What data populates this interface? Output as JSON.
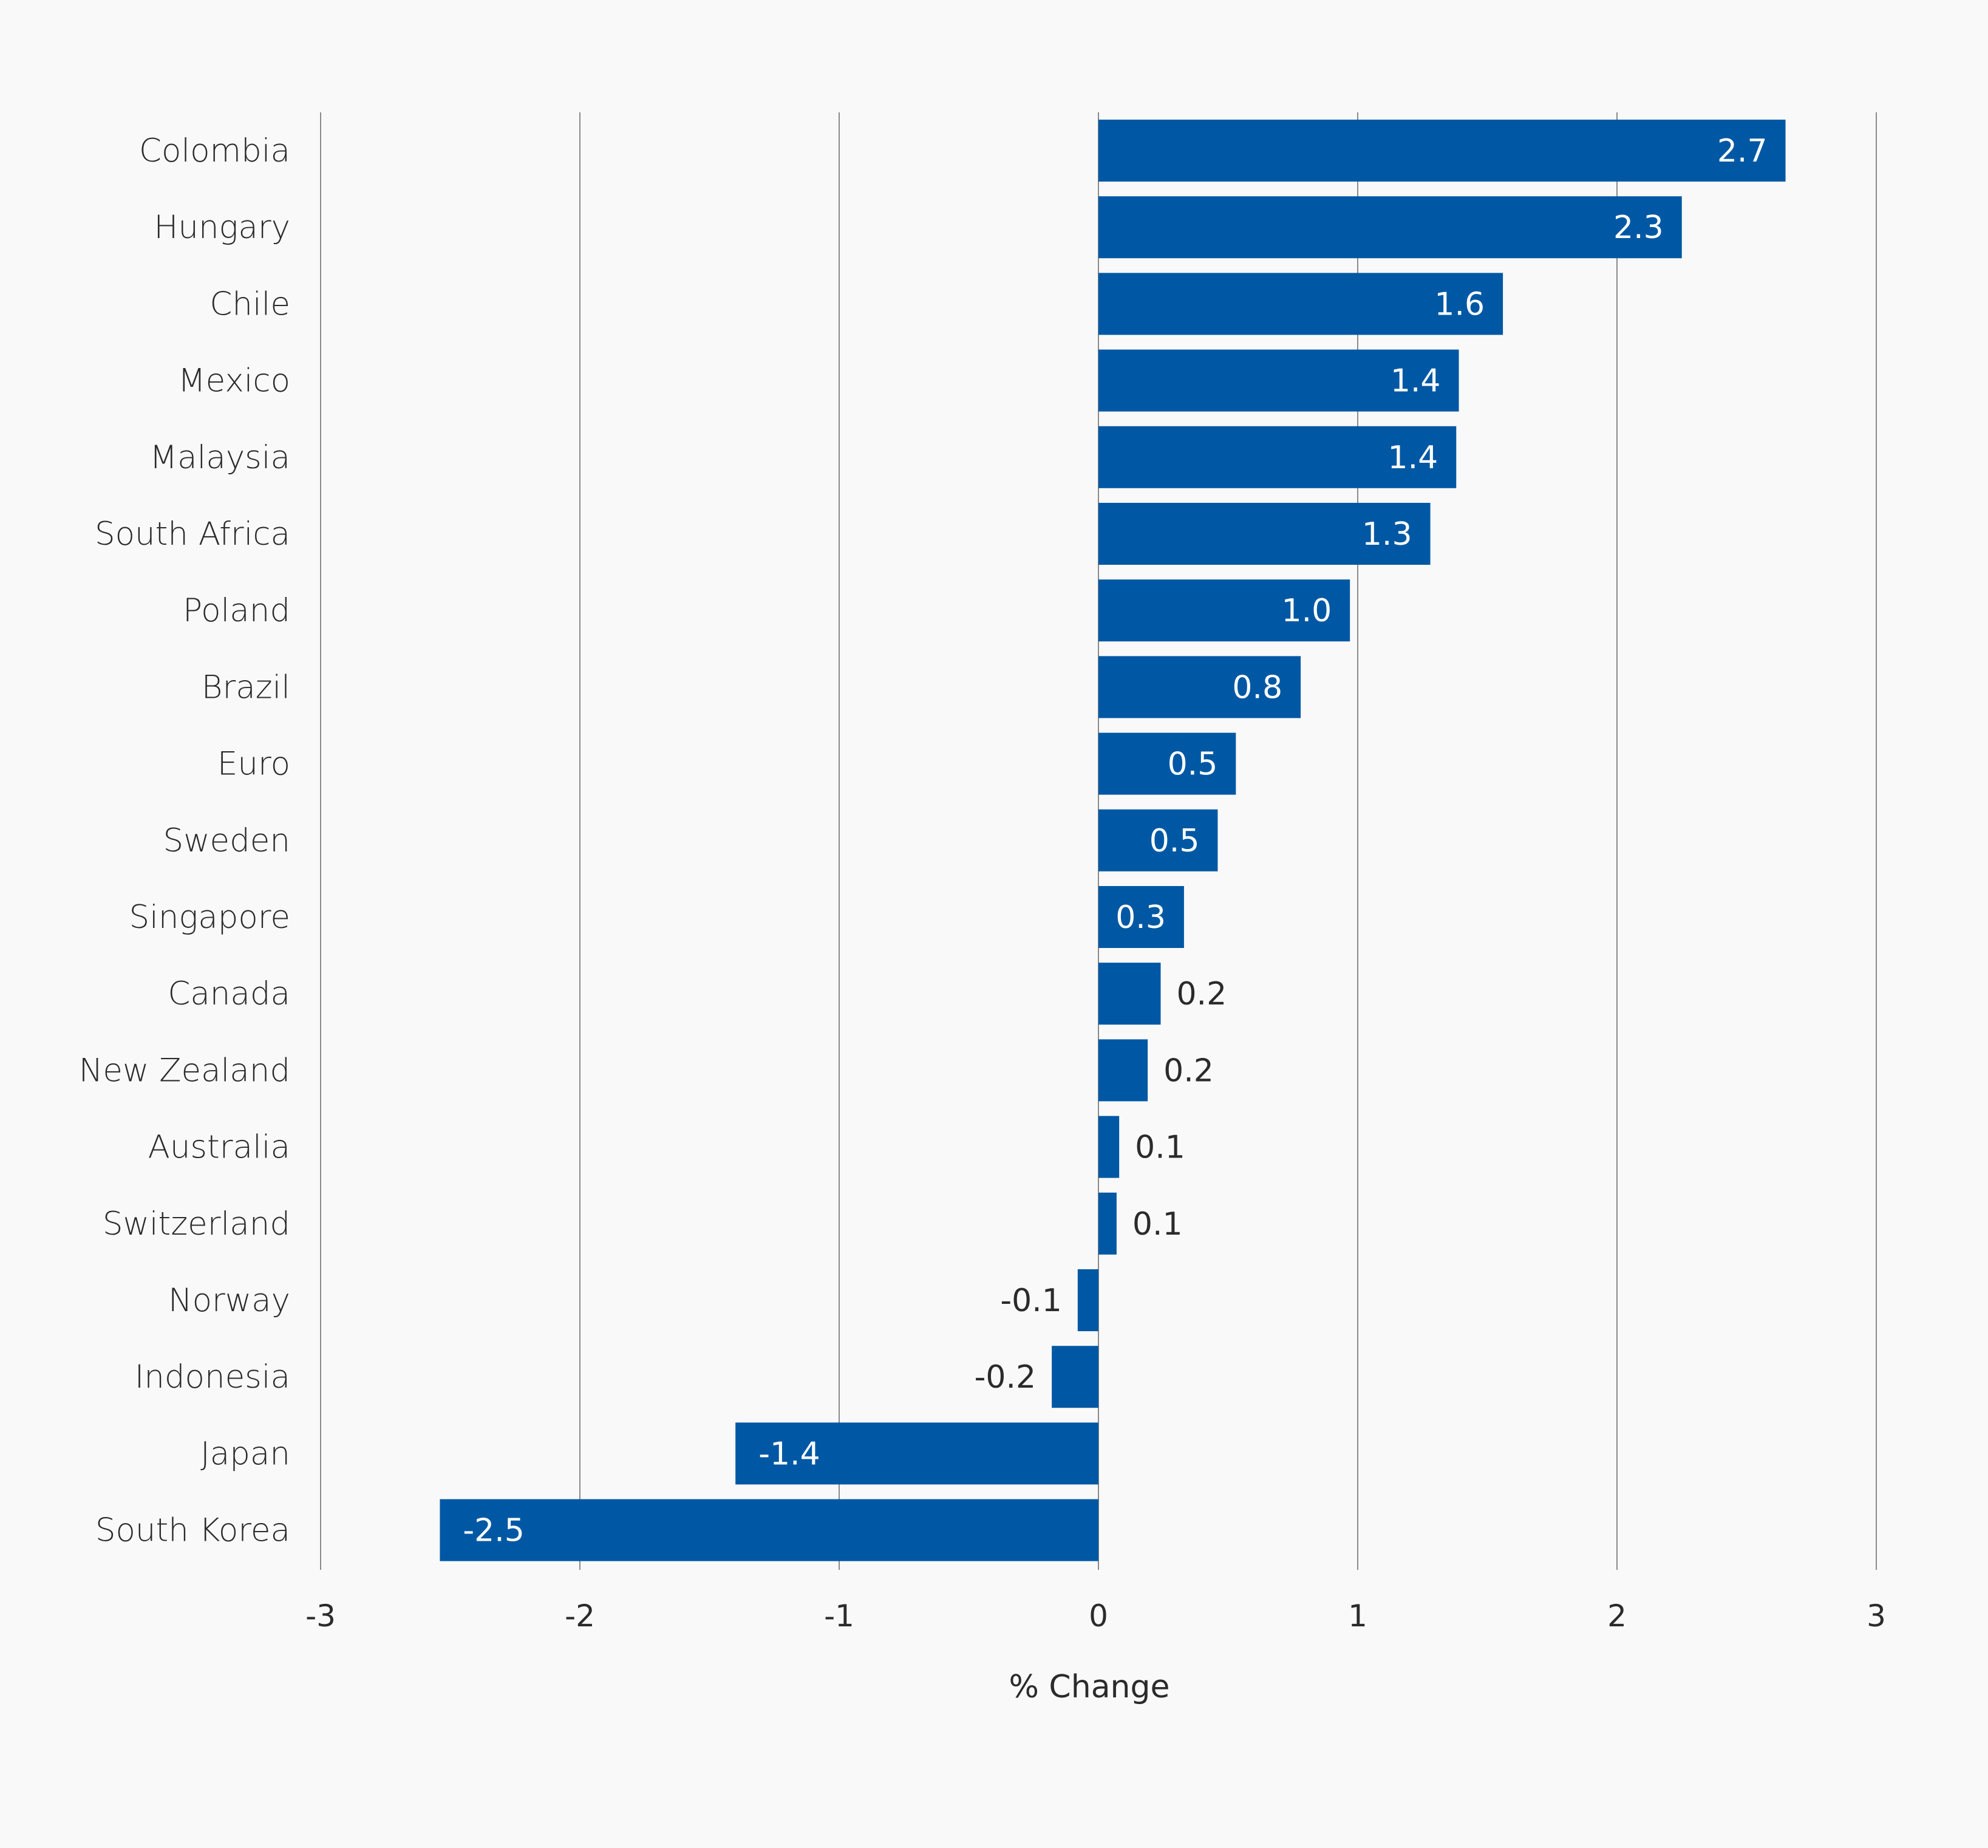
{
  "chart_data": {
    "type": "bar",
    "orientation": "horizontal",
    "categories": [
      "Colombia",
      "Hungary",
      "Chile",
      "Mexico",
      "Malaysia",
      "South Africa",
      "Poland",
      "Brazil",
      "Euro",
      "Sweden",
      "Singapore",
      "Canada",
      "New Zealand",
      "Australia",
      "Switzerland",
      "Norway",
      "Indonesia",
      "Japan",
      "South Korea"
    ],
    "values": [
      2.65,
      2.25,
      1.56,
      1.39,
      1.38,
      1.28,
      0.97,
      0.78,
      0.53,
      0.46,
      0.33,
      0.24,
      0.19,
      0.08,
      0.07,
      -0.08,
      -0.18,
      -1.4,
      -2.54
    ],
    "value_labels": [
      "2.7",
      "2.3",
      "1.6",
      "1.4",
      "1.4",
      "1.3",
      "1.0",
      "0.8",
      "0.5",
      "0.5",
      "0.3",
      "0.2",
      "0.2",
      "0.1",
      "0.1",
      "-0.1",
      "-0.2",
      "-1.4",
      "-2.5"
    ],
    "xlabel": "% Change",
    "ylabel": "",
    "xlim": [
      -3,
      3
    ],
    "xticks": [
      -3,
      -2,
      -1,
      0,
      1,
      2,
      3
    ],
    "xtick_labels": [
      "-3",
      "-2",
      "-1",
      "0",
      "1",
      "2",
      "3"
    ],
    "grid": true,
    "legend": "none",
    "colors": {
      "bar": "#0058a4",
      "grid": "#8a8a8a",
      "background": "#f9f9f9",
      "text": "#2b2b2b"
    }
  }
}
